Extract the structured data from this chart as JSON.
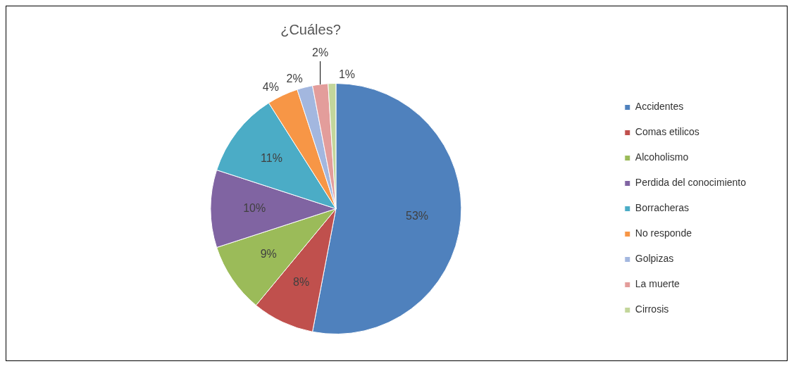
{
  "chart_data": {
    "type": "pie",
    "title": "¿Cuáles?",
    "categories": [
      "Accidentes",
      "Comas etilicos",
      "Alcoholismo",
      "Perdida del conocimiento",
      "Borracheras",
      "No responde",
      "Golpizas",
      "La muerte",
      "Cirrosis"
    ],
    "values": [
      53,
      8,
      9,
      10,
      11,
      4,
      2,
      2,
      1
    ],
    "colors": [
      "#4f81bd",
      "#c0504d",
      "#9bbb59",
      "#8064a2",
      "#4bacc6",
      "#f79646",
      "#a3b7df",
      "#e39d9b",
      "#c3d69b"
    ],
    "value_labels": [
      "53%",
      "8%",
      "9%",
      "10%",
      "11%",
      "4%",
      "2%",
      "2%",
      "1%"
    ],
    "legend": "right"
  }
}
